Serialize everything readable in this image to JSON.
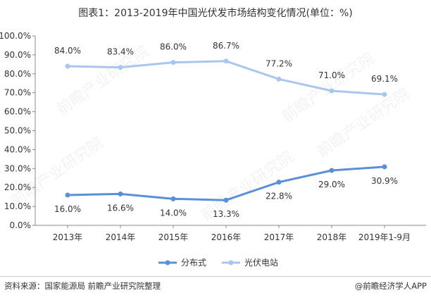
{
  "title": "图表1：2013-2019年中国光伏发市场结构变化情况(单位：%)",
  "footer": {
    "source": "资料来源：国家能源局 前瞻产业研究院整理",
    "brand": "@前瞻经济学人APP"
  },
  "watermark": "前瞻产业研究院",
  "chart_data": {
    "type": "line",
    "categories": [
      "2013年",
      "2014年",
      "2015年",
      "2016年",
      "2017年",
      "2018年",
      "2019年1-9月"
    ],
    "y_tick_labels": [
      "0.0%",
      "10.0%",
      "20.0%",
      "30.0%",
      "40.0%",
      "50.0%",
      "60.0%",
      "70.0%",
      "80.0%",
      "90.0%",
      "100.0%"
    ],
    "ylim": [
      0,
      100
    ],
    "grid": false,
    "legend_position": "bottom",
    "series": [
      {
        "name": "分布式",
        "color": "#5b8fd6",
        "values": [
          16.0,
          16.6,
          14.0,
          13.3,
          22.8,
          29.0,
          30.9
        ],
        "labels": [
          "16.0%",
          "16.6%",
          "14.0%",
          "13.3%",
          "22.8%",
          "29.0%",
          "30.9%"
        ]
      },
      {
        "name": "光伏电站",
        "color": "#a9c6ee",
        "values": [
          84.0,
          83.4,
          86.0,
          86.7,
          77.2,
          71.0,
          69.1
        ],
        "labels": [
          "84.0%",
          "83.4%",
          "86.0%",
          "86.7%",
          "77.2%",
          "71.0%",
          "69.1%"
        ]
      }
    ]
  }
}
